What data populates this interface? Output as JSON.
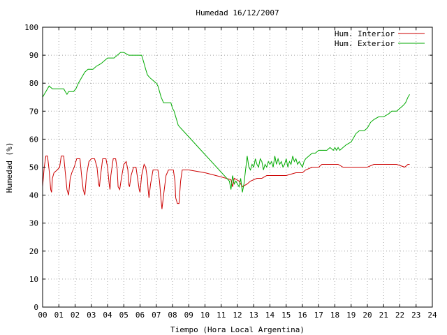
{
  "chart_data": {
    "type": "line",
    "title": "Humedad 16/12/2007",
    "xlabel": "Tiempo (Hora Local Argentina)",
    "ylabel": "Humedad (%)",
    "xlim": [
      0,
      24
    ],
    "ylim": [
      0,
      100
    ],
    "xticks": [
      "00",
      "01",
      "02",
      "03",
      "04",
      "05",
      "06",
      "07",
      "08",
      "09",
      "10",
      "11",
      "12",
      "13",
      "14",
      "15",
      "16",
      "17",
      "18",
      "19",
      "20",
      "21",
      "22",
      "23",
      "24"
    ],
    "yticks": [
      "0",
      "10",
      "20",
      "30",
      "40",
      "50",
      "60",
      "70",
      "80",
      "90",
      "100"
    ],
    "grid": true,
    "legend_position": "top-right",
    "series": [
      {
        "name": "Hum. Interior",
        "color": "#cc0000",
        "points": [
          [
            0.0,
            43
          ],
          [
            0.1,
            50
          ],
          [
            0.2,
            54
          ],
          [
            0.3,
            54
          ],
          [
            0.4,
            49
          ],
          [
            0.5,
            42
          ],
          [
            0.55,
            41
          ],
          [
            0.6,
            46
          ],
          [
            0.7,
            48
          ],
          [
            0.9,
            49
          ],
          [
            1.05,
            50
          ],
          [
            1.15,
            54
          ],
          [
            1.3,
            54
          ],
          [
            1.4,
            48
          ],
          [
            1.5,
            42
          ],
          [
            1.6,
            40
          ],
          [
            1.7,
            46
          ],
          [
            1.8,
            48
          ],
          [
            1.95,
            50
          ],
          [
            2.1,
            53
          ],
          [
            2.3,
            53
          ],
          [
            2.4,
            47
          ],
          [
            2.5,
            42
          ],
          [
            2.6,
            40
          ],
          [
            2.7,
            47
          ],
          [
            2.85,
            52
          ],
          [
            3.0,
            53
          ],
          [
            3.2,
            53
          ],
          [
            3.35,
            50
          ],
          [
            3.45,
            44
          ],
          [
            3.5,
            43
          ],
          [
            3.55,
            46
          ],
          [
            3.7,
            53
          ],
          [
            3.9,
            53
          ],
          [
            4.0,
            50
          ],
          [
            4.1,
            44
          ],
          [
            4.15,
            42
          ],
          [
            4.2,
            47
          ],
          [
            4.35,
            53
          ],
          [
            4.5,
            53
          ],
          [
            4.6,
            49
          ],
          [
            4.65,
            43
          ],
          [
            4.75,
            42
          ],
          [
            4.85,
            46
          ],
          [
            5.0,
            51
          ],
          [
            5.15,
            52
          ],
          [
            5.25,
            49
          ],
          [
            5.3,
            44
          ],
          [
            5.35,
            43
          ],
          [
            5.45,
            47
          ],
          [
            5.6,
            50
          ],
          [
            5.75,
            50
          ],
          [
            5.85,
            46
          ],
          [
            5.95,
            42
          ],
          [
            6.0,
            41
          ],
          [
            6.1,
            47
          ],
          [
            6.25,
            51
          ],
          [
            6.35,
            50
          ],
          [
            6.45,
            46
          ],
          [
            6.5,
            42
          ],
          [
            6.55,
            39
          ],
          [
            6.65,
            44
          ],
          [
            6.8,
            49
          ],
          [
            7.0,
            49
          ],
          [
            7.1,
            49
          ],
          [
            7.2,
            45
          ],
          [
            7.3,
            38
          ],
          [
            7.35,
            35
          ],
          [
            7.45,
            40
          ],
          [
            7.6,
            47
          ],
          [
            7.75,
            49
          ],
          [
            7.9,
            49
          ],
          [
            8.05,
            49
          ],
          [
            8.15,
            45
          ],
          [
            8.2,
            39
          ],
          [
            8.3,
            37
          ],
          [
            8.4,
            37
          ],
          [
            8.5,
            45
          ],
          [
            8.6,
            49
          ],
          [
            9.0,
            49
          ],
          [
            10.0,
            48
          ],
          [
            11.0,
            46.5
          ],
          [
            11.6,
            45.5
          ],
          [
            11.7,
            43
          ],
          [
            11.8,
            46
          ],
          [
            12.1,
            45
          ],
          [
            12.3,
            43
          ],
          [
            12.6,
            44
          ],
          [
            12.8,
            45
          ],
          [
            13.2,
            46
          ],
          [
            13.5,
            46
          ],
          [
            13.8,
            47
          ],
          [
            14.5,
            47
          ],
          [
            15.0,
            47
          ],
          [
            15.6,
            48
          ],
          [
            16.0,
            48
          ],
          [
            16.2,
            49
          ],
          [
            16.6,
            50
          ],
          [
            17.0,
            50
          ],
          [
            17.2,
            51
          ],
          [
            17.6,
            51
          ],
          [
            18.2,
            51
          ],
          [
            18.5,
            50
          ],
          [
            19.0,
            50
          ],
          [
            19.5,
            50
          ],
          [
            20.0,
            50
          ],
          [
            20.4,
            51
          ],
          [
            21.0,
            51
          ],
          [
            21.8,
            51
          ],
          [
            22.3,
            50
          ],
          [
            22.5,
            51
          ],
          [
            22.6,
            51
          ]
        ]
      },
      {
        "name": "Hum. Exterior",
        "color": "#00aa00",
        "points": [
          [
            0.0,
            75
          ],
          [
            0.1,
            76
          ],
          [
            0.2,
            77
          ],
          [
            0.3,
            78
          ],
          [
            0.4,
            79
          ],
          [
            0.6,
            78
          ],
          [
            1.0,
            78
          ],
          [
            1.3,
            78
          ],
          [
            1.4,
            77
          ],
          [
            1.5,
            76
          ],
          [
            1.6,
            77
          ],
          [
            1.9,
            77
          ],
          [
            2.05,
            78
          ],
          [
            2.2,
            80
          ],
          [
            2.4,
            82
          ],
          [
            2.6,
            84
          ],
          [
            2.8,
            85
          ],
          [
            3.1,
            85
          ],
          [
            3.3,
            86
          ],
          [
            3.6,
            87
          ],
          [
            3.8,
            88
          ],
          [
            4.0,
            89
          ],
          [
            4.4,
            89
          ],
          [
            4.6,
            90
          ],
          [
            4.8,
            91
          ],
          [
            5.0,
            91
          ],
          [
            5.3,
            90
          ],
          [
            5.6,
            90
          ],
          [
            5.9,
            90
          ],
          [
            6.1,
            90
          ],
          [
            6.2,
            88
          ],
          [
            6.35,
            85
          ],
          [
            6.45,
            83
          ],
          [
            6.6,
            82
          ],
          [
            6.8,
            81
          ],
          [
            7.0,
            80
          ],
          [
            7.1,
            79
          ],
          [
            7.2,
            77
          ],
          [
            7.3,
            75
          ],
          [
            7.45,
            73
          ],
          [
            7.6,
            73
          ],
          [
            7.9,
            73
          ],
          [
            8.0,
            71
          ],
          [
            8.1,
            70
          ],
          [
            8.2,
            68
          ],
          [
            8.3,
            66
          ],
          [
            8.35,
            65
          ],
          [
            8.5,
            64
          ],
          [
            11.5,
            45
          ],
          [
            11.6,
            42
          ],
          [
            11.7,
            47
          ],
          [
            11.8,
            44
          ],
          [
            11.9,
            45
          ],
          [
            12.0,
            44
          ],
          [
            12.1,
            43
          ],
          [
            12.2,
            46
          ],
          [
            12.3,
            41
          ],
          [
            12.4,
            44
          ],
          [
            12.5,
            49
          ],
          [
            12.6,
            54
          ],
          [
            12.7,
            50
          ],
          [
            12.8,
            49
          ],
          [
            12.9,
            51
          ],
          [
            13.0,
            50
          ],
          [
            13.1,
            53
          ],
          [
            13.2,
            51
          ],
          [
            13.3,
            50
          ],
          [
            13.4,
            53
          ],
          [
            13.5,
            52
          ],
          [
            13.6,
            49
          ],
          [
            13.7,
            51
          ],
          [
            13.8,
            50
          ],
          [
            13.9,
            52
          ],
          [
            14.0,
            51
          ],
          [
            14.1,
            52
          ],
          [
            14.2,
            50
          ],
          [
            14.3,
            54
          ],
          [
            14.4,
            51
          ],
          [
            14.5,
            53
          ],
          [
            14.6,
            51
          ],
          [
            14.7,
            52
          ],
          [
            14.8,
            50
          ],
          [
            14.9,
            51
          ],
          [
            15.0,
            53
          ],
          [
            15.1,
            50
          ],
          [
            15.2,
            52
          ],
          [
            15.3,
            51
          ],
          [
            15.4,
            54
          ],
          [
            15.5,
            52
          ],
          [
            15.6,
            53
          ],
          [
            15.7,
            51
          ],
          [
            15.8,
            52
          ],
          [
            15.9,
            51
          ],
          [
            16.0,
            50
          ],
          [
            16.05,
            51
          ],
          [
            16.1,
            52
          ],
          [
            16.2,
            53
          ],
          [
            16.4,
            54
          ],
          [
            16.6,
            55
          ],
          [
            16.8,
            55
          ],
          [
            17.0,
            56
          ],
          [
            17.3,
            56
          ],
          [
            17.5,
            56
          ],
          [
            17.7,
            57
          ],
          [
            17.9,
            56
          ],
          [
            18.0,
            57
          ],
          [
            18.1,
            56
          ],
          [
            18.2,
            57
          ],
          [
            18.3,
            56
          ],
          [
            18.5,
            57
          ],
          [
            18.7,
            58
          ],
          [
            19.0,
            59
          ],
          [
            19.2,
            61
          ],
          [
            19.3,
            62
          ],
          [
            19.5,
            63
          ],
          [
            19.8,
            63
          ],
          [
            20.0,
            64
          ],
          [
            20.2,
            66
          ],
          [
            20.4,
            67
          ],
          [
            20.7,
            68
          ],
          [
            21.0,
            68
          ],
          [
            21.3,
            69
          ],
          [
            21.5,
            70
          ],
          [
            21.8,
            70
          ],
          [
            22.0,
            71
          ],
          [
            22.2,
            72
          ],
          [
            22.35,
            73
          ],
          [
            22.5,
            75
          ],
          [
            22.6,
            76
          ]
        ]
      }
    ]
  }
}
